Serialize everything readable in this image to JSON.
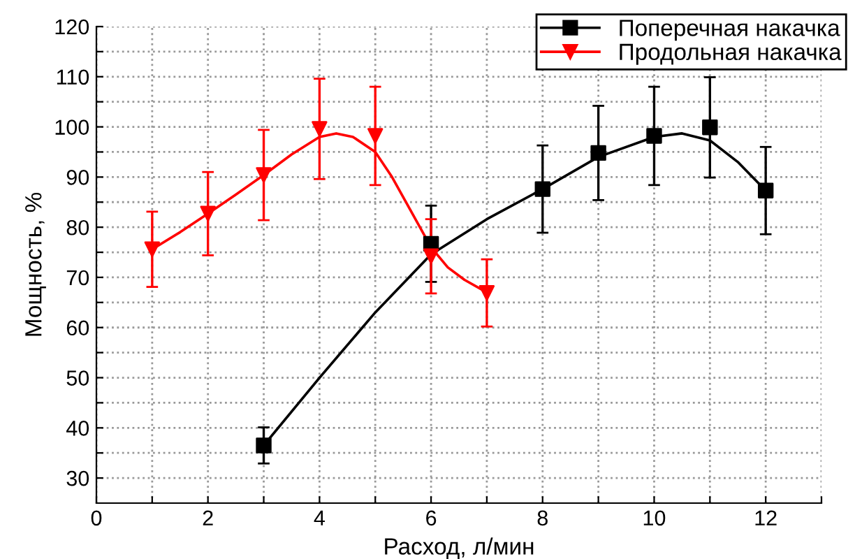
{
  "chart_data": {
    "type": "scatter",
    "xlabel": "Расход, л/мин",
    "ylabel": "Мощность, %",
    "xlim": [
      0,
      13
    ],
    "ylim": [
      25,
      120
    ],
    "xticks": [
      0,
      {
        "value": 1,
        "label": null
      },
      2,
      {
        "value": 3,
        "label": null
      },
      4,
      {
        "value": 5,
        "label": null
      },
      6,
      {
        "value": 7,
        "label": null
      },
      8,
      {
        "value": 9,
        "label": null
      },
      10,
      {
        "value": 11,
        "label": null
      },
      12,
      {
        "value": 13,
        "label": null
      }
    ],
    "yticks": [
      30,
      {
        "value": 35,
        "label": null
      },
      40,
      {
        "value": 45,
        "label": null
      },
      50,
      {
        "value": 55,
        "label": null
      },
      60,
      {
        "value": 65,
        "label": null
      },
      70,
      {
        "value": 75,
        "label": null
      },
      80,
      {
        "value": 85,
        "label": null
      },
      90,
      {
        "value": 95,
        "label": null
      },
      100,
      {
        "value": 105,
        "label": null
      },
      110,
      {
        "value": 115,
        "label": null
      },
      120
    ],
    "grid": true,
    "legend": "top right",
    "series": [
      {
        "name": "Поперечная накачка",
        "color": "#000000",
        "marker": "square",
        "x": [
          3,
          6,
          8,
          9,
          10,
          11,
          12
        ],
        "values": [
          36.5,
          76.7,
          87.6,
          94.8,
          98.2,
          99.9,
          87.3
        ],
        "errors": [
          3.6,
          7.6,
          8.7,
          9.4,
          9.8,
          10,
          8.7
        ]
      },
      {
        "name": "Продольная накачка",
        "color": "#ff0000",
        "marker": "triangle",
        "x": [
          1,
          2,
          3,
          4,
          5,
          6,
          7
        ],
        "values": [
          75.6,
          82.7,
          90.4,
          99.6,
          98.2,
          74.2,
          66.9
        ],
        "errors": [
          7.5,
          8.3,
          9,
          10,
          9.8,
          7.4,
          6.7
        ]
      },
      {
        "type": "line",
        "color": "#000000",
        "x": [
          3,
          4,
          5,
          6,
          7,
          8,
          9,
          10,
          10.5,
          11,
          11.5,
          12
        ],
        "values": [
          36.5,
          50,
          63,
          74.6,
          81.6,
          87.6,
          94,
          98,
          98.7,
          97.3,
          93,
          87.3
        ]
      },
      {
        "type": "line",
        "color": "#ff0000",
        "x": [
          1,
          1.5,
          2,
          2.5,
          3,
          3.5,
          4,
          4.3,
          4.6,
          5,
          5.3,
          5.6,
          6,
          6.3,
          6.6,
          7
        ],
        "values": [
          75.6,
          79,
          82.7,
          86.5,
          90.4,
          94.5,
          98,
          98.7,
          98,
          95,
          90,
          84,
          76,
          72,
          69.5,
          67
        ]
      }
    ]
  }
}
